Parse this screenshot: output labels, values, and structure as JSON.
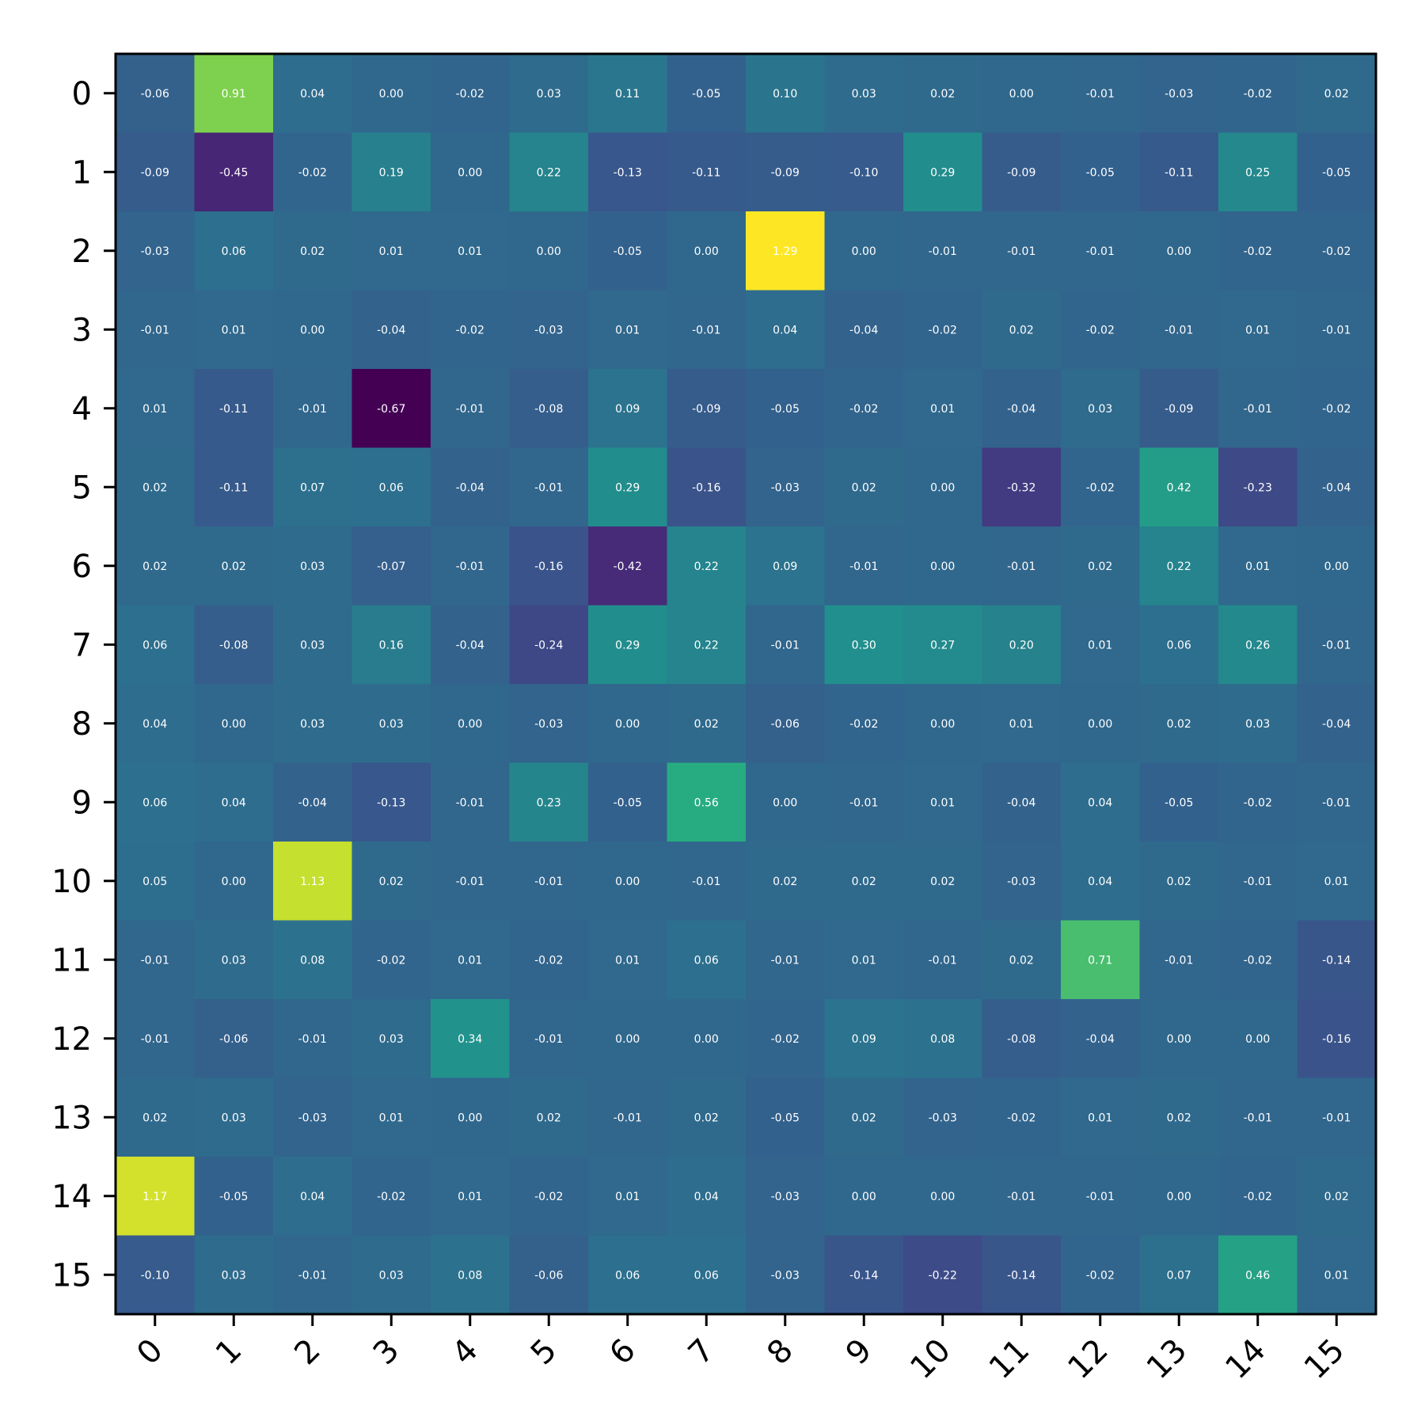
{
  "chart_data": {
    "type": "heatmap",
    "colormap": "viridis",
    "vmin": -0.67,
    "vmax": 1.29,
    "rows": [
      "0",
      "1",
      "2",
      "3",
      "4",
      "5",
      "6",
      "7",
      "8",
      "9",
      "10",
      "11",
      "12",
      "13",
      "14",
      "15"
    ],
    "cols": [
      "0",
      "1",
      "2",
      "3",
      "4",
      "5",
      "6",
      "7",
      "8",
      "9",
      "10",
      "11",
      "12",
      "13",
      "14",
      "15"
    ],
    "values": [
      [
        -0.06,
        0.91,
        0.04,
        -0.0,
        -0.02,
        0.03,
        0.11,
        -0.05,
        0.1,
        0.03,
        0.02,
        0.0,
        -0.01,
        -0.03,
        -0.02,
        0.02
      ],
      [
        -0.09,
        -0.45,
        -0.02,
        0.19,
        -0.0,
        0.22,
        -0.13,
        -0.11,
        -0.09,
        -0.1,
        0.29,
        -0.09,
        -0.05,
        -0.11,
        0.25,
        -0.05
      ],
      [
        -0.03,
        0.06,
        0.02,
        0.01,
        0.01,
        -0.0,
        -0.05,
        0.0,
        1.29,
        0.0,
        -0.01,
        -0.01,
        -0.01,
        0.0,
        -0.02,
        -0.02
      ],
      [
        -0.01,
        0.01,
        -0.0,
        -0.04,
        -0.02,
        -0.03,
        0.01,
        -0.01,
        0.04,
        -0.04,
        -0.02,
        0.02,
        -0.02,
        -0.01,
        0.01,
        -0.01
      ],
      [
        0.01,
        -0.11,
        -0.01,
        -0.67,
        -0.01,
        -0.08,
        0.09,
        -0.09,
        -0.05,
        -0.02,
        0.01,
        -0.04,
        0.03,
        -0.09,
        -0.01,
        -0.02
      ],
      [
        0.02,
        -0.11,
        0.07,
        0.06,
        -0.04,
        -0.01,
        0.29,
        -0.16,
        -0.03,
        0.02,
        0.0,
        -0.32,
        -0.02,
        0.42,
        -0.23,
        -0.04
      ],
      [
        0.02,
        0.02,
        0.03,
        -0.07,
        -0.01,
        -0.16,
        -0.42,
        0.22,
        0.09,
        -0.01,
        -0.0,
        -0.01,
        0.02,
        0.22,
        0.01,
        -0.0
      ],
      [
        0.06,
        -0.08,
        0.03,
        0.16,
        -0.04,
        -0.24,
        0.29,
        0.22,
        -0.01,
        0.3,
        0.27,
        0.2,
        0.01,
        0.06,
        0.26,
        -0.01
      ],
      [
        0.04,
        -0.0,
        0.03,
        0.03,
        0.0,
        -0.03,
        0.0,
        0.02,
        -0.06,
        -0.02,
        -0.0,
        0.01,
        0.0,
        0.02,
        0.03,
        -0.04
      ],
      [
        0.06,
        0.04,
        -0.04,
        -0.13,
        -0.01,
        0.23,
        -0.05,
        0.56,
        -0.0,
        -0.01,
        0.01,
        -0.04,
        0.04,
        -0.05,
        -0.02,
        -0.01
      ],
      [
        0.05,
        0.0,
        1.13,
        0.02,
        -0.01,
        -0.01,
        0.0,
        -0.01,
        0.02,
        0.02,
        0.02,
        -0.03,
        0.04,
        0.02,
        -0.01,
        0.01
      ],
      [
        -0.01,
        0.03,
        0.08,
        -0.02,
        0.01,
        -0.02,
        0.01,
        0.06,
        -0.01,
        0.01,
        -0.01,
        0.02,
        0.71,
        -0.01,
        -0.02,
        -0.14
      ],
      [
        -0.01,
        -0.06,
        -0.01,
        0.03,
        0.34,
        -0.01,
        0.0,
        0.0,
        -0.02,
        0.09,
        0.08,
        -0.08,
        -0.04,
        0.0,
        -0.0,
        -0.16
      ],
      [
        0.02,
        0.03,
        -0.03,
        0.01,
        0.0,
        0.02,
        -0.01,
        0.02,
        -0.05,
        0.02,
        -0.03,
        -0.02,
        0.01,
        0.02,
        -0.01,
        -0.01
      ],
      [
        1.17,
        -0.05,
        0.04,
        -0.02,
        0.01,
        -0.02,
        0.01,
        0.04,
        -0.03,
        0.0,
        -0.0,
        -0.01,
        -0.01,
        0.0,
        -0.02,
        0.02
      ],
      [
        -0.1,
        0.03,
        -0.01,
        0.03,
        0.08,
        -0.06,
        0.06,
        0.06,
        -0.03,
        -0.14,
        -0.22,
        -0.14,
        -0.02,
        0.07,
        0.46,
        0.01
      ]
    ],
    "cell_labels": "two-decimal values shown in every cell",
    "legend": "none",
    "grid": false
  }
}
